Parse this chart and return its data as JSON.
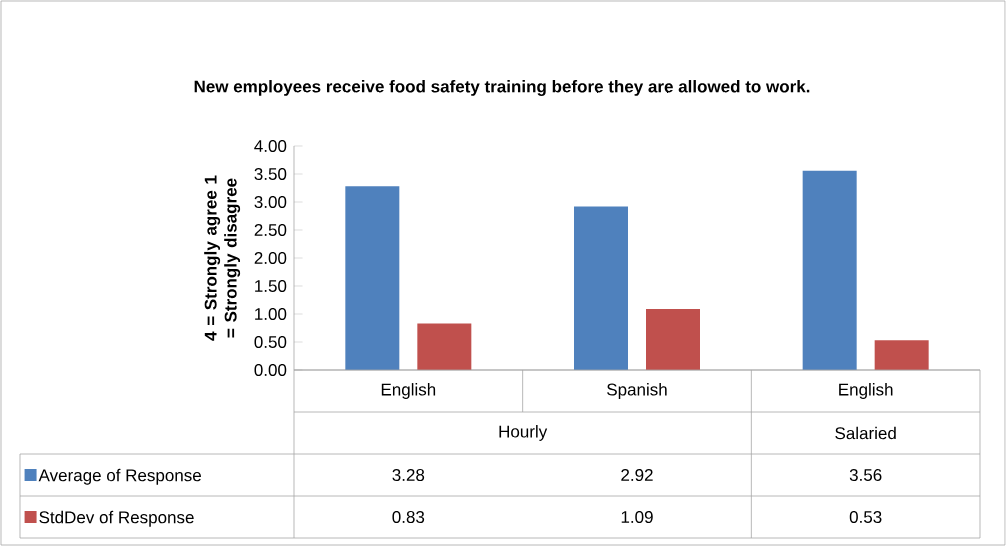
{
  "chart_data": {
    "type": "bar",
    "title": "New employees receive food safety training before they are allowed to work.",
    "ylabel": "4 = Strongly agree 1 = Strongly disagree",
    "categories": [
      "English",
      "Spanish",
      "English"
    ],
    "annotations": [
      "Hourly",
      "Salaried"
    ],
    "series": [
      {
        "name": "Average of Response",
        "color": "#4f81bd",
        "values": [
          3.28,
          2.92,
          3.56
        ]
      },
      {
        "name": "StdDev of Response",
        "color": "#c0504d",
        "values": [
          0.83,
          1.09,
          0.53
        ]
      }
    ],
    "ylim": [
      0,
      4
    ],
    "yticks": [
      {
        "value": 0,
        "label": "0.00"
      },
      {
        "value": 0.5,
        "label": "0.50"
      },
      {
        "value": 1,
        "label": "1.00"
      },
      {
        "value": 1.5,
        "label": "1.50"
      },
      {
        "value": 2,
        "label": "2.00"
      },
      {
        "value": 2.5,
        "label": "2.50"
      },
      {
        "value": 3,
        "label": "3.00"
      },
      {
        "value": 3.5,
        "label": "3.50"
      },
      {
        "value": 4,
        "label": "4.00"
      }
    ],
    "data_labels": true,
    "legend": "bottom",
    "grid": false
  }
}
